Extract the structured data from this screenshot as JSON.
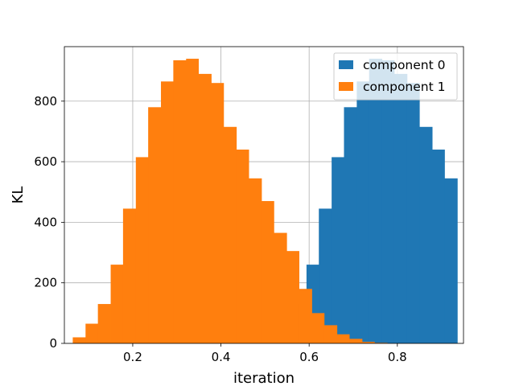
{
  "chart_data": {
    "type": "histogram",
    "title": "",
    "xlabel": "iteration",
    "ylabel": "KL",
    "xlim": [
      0.045,
      0.95
    ],
    "ylim": [
      0,
      980
    ],
    "xticks": [
      0.2,
      0.4,
      0.6,
      0.8
    ],
    "xtick_labels": [
      "0.2",
      "0.4",
      "0.6",
      "0.8"
    ],
    "yticks": [
      0,
      200,
      400,
      600,
      800
    ],
    "ytick_labels": [
      "0",
      "200",
      "400",
      "600",
      "800"
    ],
    "grid": true,
    "legend_position": "upper right",
    "series": [
      {
        "name": "component 0",
        "color": "#1f77b4",
        "bin_edges": [
          0.508,
          0.537,
          0.565,
          0.594,
          0.622,
          0.651,
          0.679,
          0.708,
          0.736,
          0.765,
          0.793,
          0.822,
          0.85,
          0.879,
          0.907,
          0.936
        ],
        "counts": [
          20,
          60,
          130,
          260,
          445,
          615,
          780,
          865,
          940,
          935,
          890,
          860,
          715,
          640,
          545
        ],
        "counts_note": ""
      },
      {
        "name": "component 1",
        "color": "#ff7f0e",
        "bin_edges": [
          0.064,
          0.093,
          0.121,
          0.15,
          0.178,
          0.207,
          0.235,
          0.264,
          0.292,
          0.321,
          0.349,
          0.378,
          0.406,
          0.435,
          0.463,
          0.492,
          0.52,
          0.549,
          0.577,
          0.606,
          0.634,
          0.663,
          0.691,
          0.72,
          0.748,
          0.777
        ],
        "counts": [
          20,
          65,
          130,
          260,
          445,
          615,
          780,
          865,
          935,
          940,
          890,
          860,
          715,
          640,
          545,
          470,
          365,
          305,
          180,
          100,
          60,
          30,
          15,
          5,
          2
        ]
      }
    ]
  }
}
